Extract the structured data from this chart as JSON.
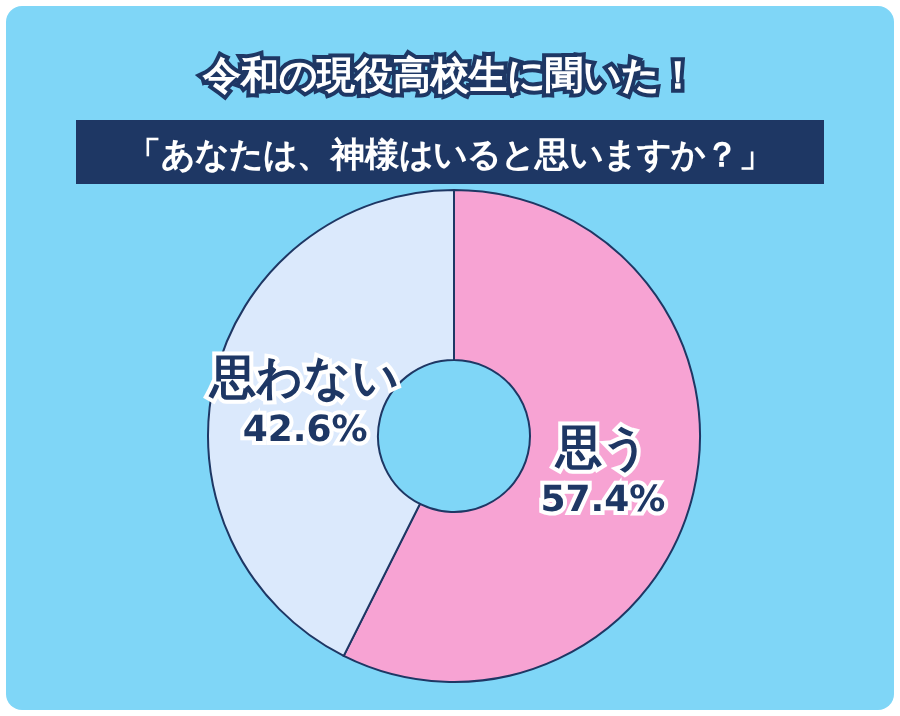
{
  "chart_data": {
    "type": "donut",
    "title": "令和の現役高校生に聞いた！",
    "subtitle": "「あなたは、神様はいると思いますか？」",
    "categories": [
      "思う",
      "思わない"
    ],
    "values": [
      57.4,
      42.6
    ],
    "colors": [
      "#f7a3d3",
      "#dbe9fc"
    ],
    "value_labels": [
      "57.4%",
      "42.6%"
    ]
  }
}
